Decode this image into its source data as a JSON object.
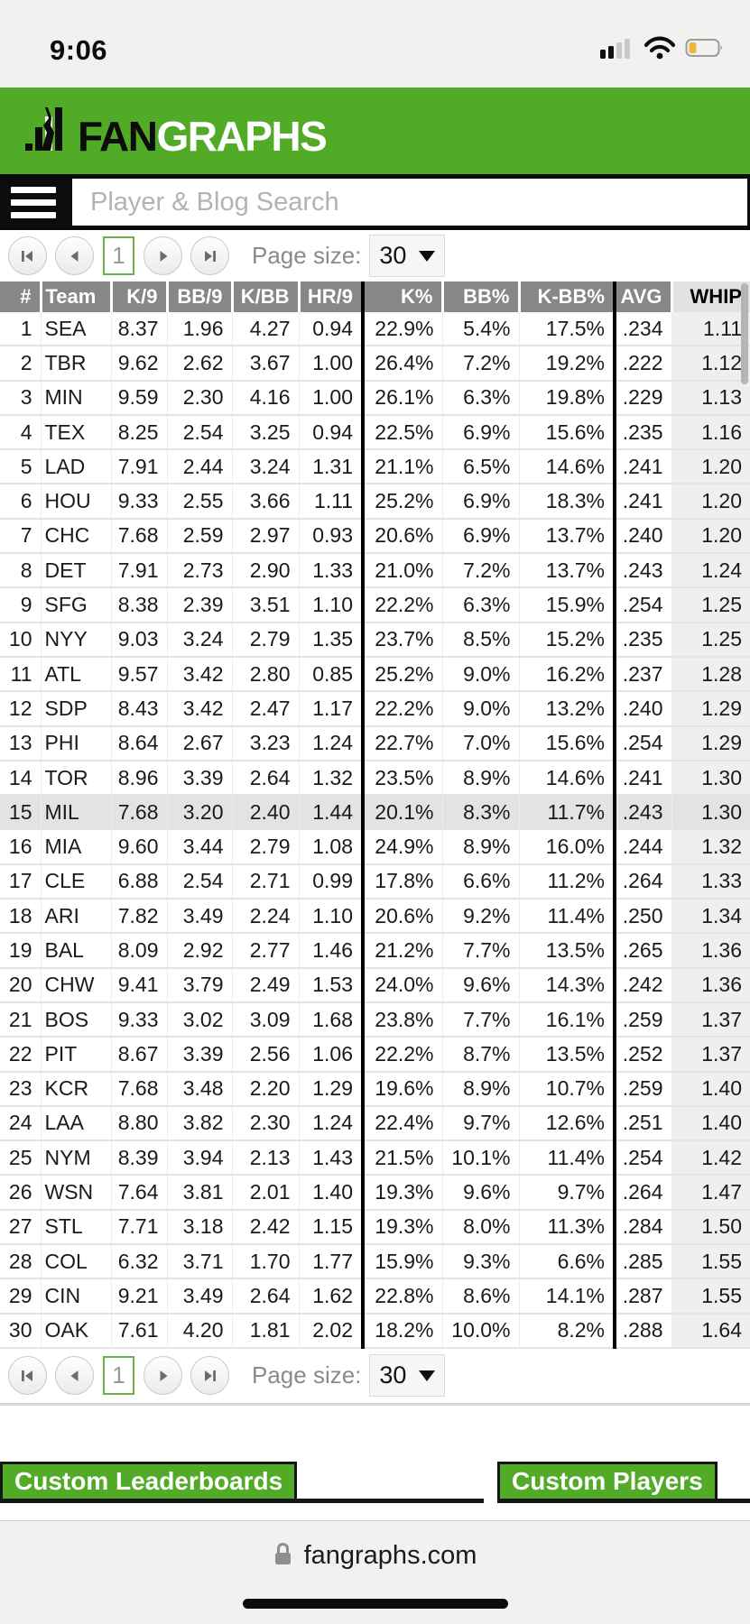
{
  "status_bar": {
    "time": "9:06"
  },
  "header": {
    "logo": {
      "fan": "FAN",
      "graphs": "GRAPHS"
    }
  },
  "nav": {
    "search_placeholder": "Player & Blog Search"
  },
  "pager": {
    "page": "1",
    "page_size_label": "Page size:",
    "page_size": "30"
  },
  "table": {
    "columns": [
      "#",
      "Team",
      "K/9",
      "BB/9",
      "K/BB",
      "HR/9",
      "K%",
      "BB%",
      "K-BB%",
      "AVG",
      "WHIP"
    ],
    "column_keys": [
      "rank",
      "team",
      "k9",
      "bb9",
      "kbb",
      "hr9",
      "kpct",
      "bbpct",
      "kbbpct",
      "avg",
      "whip"
    ],
    "sorted_column": "WHIP",
    "highlighted_row": 15,
    "rows": [
      [
        "1",
        "SEA",
        "8.37",
        "1.96",
        "4.27",
        "0.94",
        "22.9%",
        "5.4%",
        "17.5%",
        ".234",
        "1.11"
      ],
      [
        "2",
        "TBR",
        "9.62",
        "2.62",
        "3.67",
        "1.00",
        "26.4%",
        "7.2%",
        "19.2%",
        ".222",
        "1.12"
      ],
      [
        "3",
        "MIN",
        "9.59",
        "2.30",
        "4.16",
        "1.00",
        "26.1%",
        "6.3%",
        "19.8%",
        ".229",
        "1.13"
      ],
      [
        "4",
        "TEX",
        "8.25",
        "2.54",
        "3.25",
        "0.94",
        "22.5%",
        "6.9%",
        "15.6%",
        ".235",
        "1.16"
      ],
      [
        "5",
        "LAD",
        "7.91",
        "2.44",
        "3.24",
        "1.31",
        "21.1%",
        "6.5%",
        "14.6%",
        ".241",
        "1.20"
      ],
      [
        "6",
        "HOU",
        "9.33",
        "2.55",
        "3.66",
        "1.11",
        "25.2%",
        "6.9%",
        "18.3%",
        ".241",
        "1.20"
      ],
      [
        "7",
        "CHC",
        "7.68",
        "2.59",
        "2.97",
        "0.93",
        "20.6%",
        "6.9%",
        "13.7%",
        ".240",
        "1.20"
      ],
      [
        "8",
        "DET",
        "7.91",
        "2.73",
        "2.90",
        "1.33",
        "21.0%",
        "7.2%",
        "13.7%",
        ".243",
        "1.24"
      ],
      [
        "9",
        "SFG",
        "8.38",
        "2.39",
        "3.51",
        "1.10",
        "22.2%",
        "6.3%",
        "15.9%",
        ".254",
        "1.25"
      ],
      [
        "10",
        "NYY",
        "9.03",
        "3.24",
        "2.79",
        "1.35",
        "23.7%",
        "8.5%",
        "15.2%",
        ".235",
        "1.25"
      ],
      [
        "11",
        "ATL",
        "9.57",
        "3.42",
        "2.80",
        "0.85",
        "25.2%",
        "9.0%",
        "16.2%",
        ".237",
        "1.28"
      ],
      [
        "12",
        "SDP",
        "8.43",
        "3.42",
        "2.47",
        "1.17",
        "22.2%",
        "9.0%",
        "13.2%",
        ".240",
        "1.29"
      ],
      [
        "13",
        "PHI",
        "8.64",
        "2.67",
        "3.23",
        "1.24",
        "22.7%",
        "7.0%",
        "15.6%",
        ".254",
        "1.29"
      ],
      [
        "14",
        "TOR",
        "8.96",
        "3.39",
        "2.64",
        "1.32",
        "23.5%",
        "8.9%",
        "14.6%",
        ".241",
        "1.30"
      ],
      [
        "15",
        "MIL",
        "7.68",
        "3.20",
        "2.40",
        "1.44",
        "20.1%",
        "8.3%",
        "11.7%",
        ".243",
        "1.30"
      ],
      [
        "16",
        "MIA",
        "9.60",
        "3.44",
        "2.79",
        "1.08",
        "24.9%",
        "8.9%",
        "16.0%",
        ".244",
        "1.32"
      ],
      [
        "17",
        "CLE",
        "6.88",
        "2.54",
        "2.71",
        "0.99",
        "17.8%",
        "6.6%",
        "11.2%",
        ".264",
        "1.33"
      ],
      [
        "18",
        "ARI",
        "7.82",
        "3.49",
        "2.24",
        "1.10",
        "20.6%",
        "9.2%",
        "11.4%",
        ".250",
        "1.34"
      ],
      [
        "19",
        "BAL",
        "8.09",
        "2.92",
        "2.77",
        "1.46",
        "21.2%",
        "7.7%",
        "13.5%",
        ".265",
        "1.36"
      ],
      [
        "20",
        "CHW",
        "9.41",
        "3.79",
        "2.49",
        "1.53",
        "24.0%",
        "9.6%",
        "14.3%",
        ".242",
        "1.36"
      ],
      [
        "21",
        "BOS",
        "9.33",
        "3.02",
        "3.09",
        "1.68",
        "23.8%",
        "7.7%",
        "16.1%",
        ".259",
        "1.37"
      ],
      [
        "22",
        "PIT",
        "8.67",
        "3.39",
        "2.56",
        "1.06",
        "22.2%",
        "8.7%",
        "13.5%",
        ".252",
        "1.37"
      ],
      [
        "23",
        "KCR",
        "7.68",
        "3.48",
        "2.20",
        "1.29",
        "19.6%",
        "8.9%",
        "10.7%",
        ".259",
        "1.40"
      ],
      [
        "24",
        "LAA",
        "8.80",
        "3.82",
        "2.30",
        "1.24",
        "22.4%",
        "9.7%",
        "12.6%",
        ".251",
        "1.40"
      ],
      [
        "25",
        "NYM",
        "8.39",
        "3.94",
        "2.13",
        "1.43",
        "21.5%",
        "10.1%",
        "11.4%",
        ".254",
        "1.42"
      ],
      [
        "26",
        "WSN",
        "7.64",
        "3.81",
        "2.01",
        "1.40",
        "19.3%",
        "9.6%",
        "9.7%",
        ".264",
        "1.47"
      ],
      [
        "27",
        "STL",
        "7.71",
        "3.18",
        "2.42",
        "1.15",
        "19.3%",
        "8.0%",
        "11.3%",
        ".284",
        "1.50"
      ],
      [
        "28",
        "COL",
        "6.32",
        "3.71",
        "1.70",
        "1.77",
        "15.9%",
        "9.3%",
        "6.6%",
        ".285",
        "1.55"
      ],
      [
        "29",
        "CIN",
        "9.21",
        "3.49",
        "2.64",
        "1.62",
        "22.8%",
        "8.6%",
        "14.1%",
        ".287",
        "1.55"
      ],
      [
        "30",
        "OAK",
        "7.61",
        "4.20",
        "1.81",
        "2.02",
        "18.2%",
        "10.0%",
        "8.2%",
        ".288",
        "1.64"
      ]
    ]
  },
  "footer": {
    "custom_leaderboards": "Custom Leaderboards",
    "custom_players": "Custom Players"
  },
  "browser": {
    "url": "fangraphs.com"
  },
  "colors": {
    "brand_green": "#52ab27",
    "table_header_gray": "#878787",
    "highlight_row": "#e3e3e3",
    "battery_yellow": "#eeb63c",
    "group_divider": "#000000"
  }
}
